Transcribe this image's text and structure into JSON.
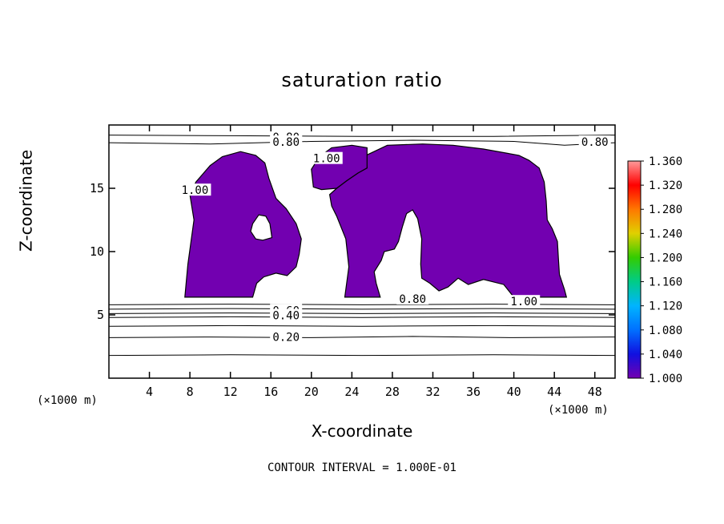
{
  "chart_data": {
    "type": "heatmap",
    "title": "saturation ratio",
    "xlabel": "X-coordinate",
    "ylabel": "Z-coordinate",
    "x_unit": "(×1000 m)",
    "y_unit": "(×1000 m)",
    "xlim": [
      0,
      50
    ],
    "ylim": [
      0,
      20
    ],
    "xticks": [
      4,
      8,
      12,
      16,
      20,
      24,
      28,
      32,
      36,
      40,
      44,
      48
    ],
    "yticks": [
      5,
      10,
      15
    ],
    "contour_interval_label": "CONTOUR INTERVAL = 1.000E-01",
    "colorbar": {
      "levels": [
        1.36,
        1.32,
        1.28,
        1.24,
        1.2,
        1.16,
        1.12,
        1.08,
        1.04,
        1.0
      ],
      "labels": [
        "1.360",
        "1.320",
        "1.280",
        "1.240",
        "1.200",
        "1.160",
        "1.120",
        "1.080",
        "1.040",
        "1.000"
      ],
      "colors": [
        "#ff9a9a",
        "#ff0000",
        "#ff7700",
        "#e0d000",
        "#33cc00",
        "#00cc88",
        "#00b4ff",
        "#0070ff",
        "#1010e0",
        "#7200b0"
      ]
    },
    "contour_labels": [
      {
        "text": "0.80",
        "x": 17.5,
        "y": 19.0
      },
      {
        "text": "0.80",
        "x": 17.5,
        "y": 18.6
      },
      {
        "text": "0.80",
        "x": 48.0,
        "y": 18.6
      },
      {
        "text": "1.00",
        "x": 21.5,
        "y": 17.3
      },
      {
        "text": "1.00",
        "x": 8.5,
        "y": 14.8
      },
      {
        "text": "0.80",
        "x": 30.0,
        "y": 6.2
      },
      {
        "text": "1.00",
        "x": 41.0,
        "y": 6.0
      },
      {
        "text": "0.60",
        "x": 17.5,
        "y": 5.3
      },
      {
        "text": "0.40",
        "x": 17.5,
        "y": 4.9
      },
      {
        "text": "0.20",
        "x": 17.5,
        "y": 3.2
      }
    ],
    "supersaturated_regions": [
      {
        "name": "left-plume",
        "outline": [
          [
            7.5,
            6.4
          ],
          [
            7.8,
            9.0
          ],
          [
            8.4,
            12.5
          ],
          [
            8.0,
            14.5
          ],
          [
            8.6,
            15.5
          ],
          [
            10.0,
            16.8
          ],
          [
            11.2,
            17.5
          ],
          [
            13.0,
            17.9
          ],
          [
            14.5,
            17.6
          ],
          [
            15.4,
            17.0
          ],
          [
            15.8,
            15.8
          ],
          [
            16.5,
            14.2
          ],
          [
            17.5,
            13.4
          ],
          [
            18.5,
            12.2
          ],
          [
            19.0,
            11.0
          ],
          [
            18.8,
            9.8
          ],
          [
            18.5,
            8.8
          ],
          [
            17.6,
            8.1
          ],
          [
            16.5,
            8.3
          ],
          [
            15.3,
            8.0
          ],
          [
            14.6,
            7.5
          ],
          [
            14.2,
            6.4
          ]
        ],
        "hole": [
          [
            14.2,
            12.2
          ],
          [
            14.8,
            12.9
          ],
          [
            15.5,
            12.8
          ],
          [
            15.9,
            12.2
          ],
          [
            16.1,
            11.1
          ],
          [
            15.2,
            10.9
          ],
          [
            14.5,
            11.0
          ],
          [
            14.0,
            11.6
          ]
        ]
      },
      {
        "name": "center-plume",
        "outline": [
          [
            23.3,
            6.4
          ],
          [
            23.7,
            8.8
          ],
          [
            23.4,
            11.0
          ],
          [
            22.5,
            12.8
          ],
          [
            22.0,
            13.6
          ],
          [
            21.8,
            14.5
          ],
          [
            22.5,
            15.0
          ],
          [
            23.5,
            15.6
          ],
          [
            24.6,
            16.2
          ],
          [
            25.5,
            16.6
          ],
          [
            25.4,
            17.6
          ],
          [
            27.5,
            18.4
          ],
          [
            31.0,
            18.5
          ],
          [
            34.0,
            18.4
          ],
          [
            37.0,
            18.1
          ],
          [
            40.5,
            17.6
          ],
          [
            41.5,
            17.2
          ],
          [
            42.5,
            16.6
          ],
          [
            43.0,
            15.5
          ],
          [
            43.2,
            14.0
          ],
          [
            43.3,
            12.5
          ],
          [
            43.8,
            11.8
          ],
          [
            44.3,
            10.8
          ],
          [
            44.4,
            9.5
          ],
          [
            44.5,
            8.2
          ],
          [
            45.0,
            7.0
          ],
          [
            45.2,
            6.4
          ],
          [
            40.0,
            6.4
          ],
          [
            39.0,
            7.4
          ],
          [
            37.0,
            7.8
          ],
          [
            35.5,
            7.4
          ],
          [
            34.5,
            7.9
          ],
          [
            33.5,
            7.2
          ],
          [
            32.6,
            6.9
          ],
          [
            31.7,
            7.5
          ],
          [
            30.9,
            7.9
          ],
          [
            30.8,
            9.0
          ],
          [
            30.9,
            11.0
          ],
          [
            30.5,
            12.6
          ],
          [
            30.0,
            13.3
          ],
          [
            29.4,
            13.0
          ],
          [
            29.0,
            12.0
          ],
          [
            28.6,
            10.8
          ],
          [
            28.2,
            10.2
          ],
          [
            27.2,
            10.0
          ],
          [
            26.9,
            9.3
          ],
          [
            26.2,
            8.4
          ],
          [
            26.4,
            7.5
          ],
          [
            26.8,
            6.4
          ]
        ]
      },
      {
        "name": "upper-left-arm",
        "outline": [
          [
            20.2,
            15.1
          ],
          [
            20.0,
            16.5
          ],
          [
            20.8,
            17.5
          ],
          [
            22.0,
            18.2
          ],
          [
            24.0,
            18.4
          ],
          [
            25.5,
            18.2
          ],
          [
            25.5,
            16.6
          ],
          [
            24.6,
            16.2
          ],
          [
            23.5,
            15.6
          ],
          [
            22.5,
            15.0
          ],
          [
            21.0,
            14.9
          ]
        ]
      }
    ],
    "contours": [
      {
        "level": 0.2,
        "line": [
          [
            0,
            3.2
          ],
          [
            10,
            3.25
          ],
          [
            20,
            3.2
          ],
          [
            30,
            3.3
          ],
          [
            40,
            3.2
          ],
          [
            50,
            3.25
          ]
        ]
      },
      {
        "level": 0.1,
        "line": [
          [
            0,
            1.8
          ],
          [
            12,
            1.85
          ],
          [
            25,
            1.8
          ],
          [
            38,
            1.85
          ],
          [
            50,
            1.8
          ]
        ]
      },
      {
        "level": 0.3,
        "line": [
          [
            0,
            4.1
          ],
          [
            12,
            4.15
          ],
          [
            25,
            4.1
          ],
          [
            38,
            4.15
          ],
          [
            50,
            4.1
          ]
        ]
      },
      {
        "level": 0.4,
        "line": [
          [
            0,
            4.8
          ],
          [
            12,
            4.85
          ],
          [
            25,
            4.8
          ],
          [
            38,
            4.85
          ],
          [
            50,
            4.8
          ]
        ]
      },
      {
        "level": 0.5,
        "line": [
          [
            0,
            5.1
          ],
          [
            12,
            5.15
          ],
          [
            25,
            5.1
          ],
          [
            38,
            5.15
          ],
          [
            50,
            5.1
          ]
        ]
      },
      {
        "level": 0.6,
        "line": [
          [
            0,
            5.45
          ],
          [
            12,
            5.5
          ],
          [
            25,
            5.45
          ],
          [
            38,
            5.5
          ],
          [
            50,
            5.45
          ]
        ]
      },
      {
        "level": 0.7,
        "line": [
          [
            0,
            5.8
          ],
          [
            12,
            5.85
          ],
          [
            25,
            5.8
          ],
          [
            38,
            5.85
          ],
          [
            50,
            5.8
          ]
        ]
      },
      {
        "level": 0.8,
        "line": [
          [
            0,
            19.2
          ],
          [
            12,
            19.15
          ],
          [
            25,
            19.1
          ],
          [
            38,
            19.1
          ],
          [
            50,
            19.2
          ]
        ]
      },
      {
        "level": 0.8,
        "line": [
          [
            0,
            18.6
          ],
          [
            10,
            18.5
          ],
          [
            20,
            18.7
          ],
          [
            30,
            18.8
          ],
          [
            40,
            18.7
          ],
          [
            45,
            18.4
          ],
          [
            50,
            18.6
          ]
        ]
      }
    ]
  }
}
